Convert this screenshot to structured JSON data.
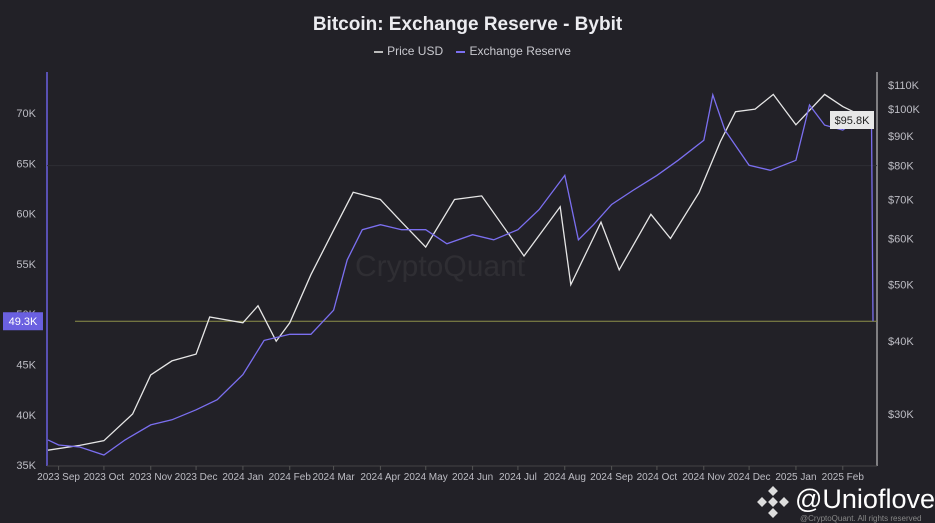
{
  "chart_data": {
    "type": "line",
    "title": "Bitcoin: Exchange Reserve - Bybit",
    "legend": {
      "placement": "top",
      "entries": [
        "Price USD",
        "Exchange Reserve"
      ]
    },
    "left_axis": {
      "ticks": [
        "35K",
        "40K",
        "45K",
        "50K",
        "55K",
        "60K",
        "65K",
        "70K"
      ],
      "tick_values": [
        35,
        40,
        45,
        50,
        55,
        60,
        65,
        70
      ],
      "range": [
        34,
        74
      ],
      "unit": "K BTC"
    },
    "right_axis": {
      "scale": "log",
      "ticks": [
        "$30K",
        "$40K",
        "$50K",
        "$60K",
        "$70K",
        "$80K",
        "$90K",
        "$100K",
        "$110K"
      ],
      "tick_values": [
        30,
        40,
        50,
        60,
        70,
        80,
        90,
        100,
        110
      ]
    },
    "x_ticks": [
      "2023 Sep",
      "2023 Oct",
      "2023 Nov",
      "2023 Dec",
      "2024 Jan",
      "2024 Feb",
      "2024 Mar",
      "2024 Apr",
      "2024 May",
      "2024 Jun",
      "2024 Jul",
      "2024 Aug",
      "2024 Sep",
      "2024 Oct",
      "2024 Nov",
      "2024 Dec",
      "2025 Jan",
      "2025 Feb"
    ],
    "x_tick_dates": [
      "2023-09-01",
      "2023-10-01",
      "2023-11-01",
      "2023-12-01",
      "2024-01-01",
      "2024-02-01",
      "2024-03-01",
      "2024-04-01",
      "2024-05-01",
      "2024-06-01",
      "2024-07-01",
      "2024-08-01",
      "2024-09-01",
      "2024-10-01",
      "2024-11-01",
      "2024-12-01",
      "2025-01-01",
      "2025-02-01"
    ],
    "current_labels": {
      "reserve": "49.3K",
      "price": "$95.8K"
    },
    "series": [
      {
        "name": "Exchange Reserve",
        "color": "#7b6ff0",
        "axis": "left",
        "points": [
          [
            "2023-08-25",
            37.5
          ],
          [
            "2023-09-01",
            37
          ],
          [
            "2023-09-15",
            36.8
          ],
          [
            "2023-10-01",
            36
          ],
          [
            "2023-10-15",
            37.5
          ],
          [
            "2023-11-01",
            39
          ],
          [
            "2023-11-15",
            39.5
          ],
          [
            "2023-12-01",
            40.5
          ],
          [
            "2023-12-15",
            41.5
          ],
          [
            "2024-01-01",
            44
          ],
          [
            "2024-01-15",
            47.4
          ],
          [
            "2024-02-01",
            48
          ],
          [
            "2024-02-15",
            48
          ],
          [
            "2024-03-01",
            50.4
          ],
          [
            "2024-03-10",
            55.4
          ],
          [
            "2024-03-20",
            58.4
          ],
          [
            "2024-04-01",
            58.9
          ],
          [
            "2024-04-15",
            58.4
          ],
          [
            "2024-05-01",
            58.4
          ],
          [
            "2024-05-15",
            57
          ],
          [
            "2024-06-01",
            57.9
          ],
          [
            "2024-06-15",
            57.4
          ],
          [
            "2024-07-01",
            58.4
          ],
          [
            "2024-07-15",
            60.4
          ],
          [
            "2024-08-01",
            63.8
          ],
          [
            "2024-08-10",
            57.4
          ],
          [
            "2024-08-20",
            58.9
          ],
          [
            "2024-09-01",
            60.9
          ],
          [
            "2024-09-15",
            62.3
          ],
          [
            "2024-10-01",
            63.8
          ],
          [
            "2024-10-15",
            65.3
          ],
          [
            "2024-11-01",
            67.3
          ],
          [
            "2024-11-07",
            71.8
          ],
          [
            "2024-11-15",
            68.3
          ],
          [
            "2024-12-01",
            64.8
          ],
          [
            "2024-12-15",
            64.3
          ],
          [
            "2025-01-01",
            65.3
          ],
          [
            "2025-01-10",
            70.8
          ],
          [
            "2025-01-20",
            68.8
          ],
          [
            "2025-02-01",
            68.3
          ],
          [
            "2025-02-15",
            69.8
          ],
          [
            "2025-02-20",
            69.3
          ],
          [
            "2025-02-21",
            49.3
          ]
        ]
      },
      {
        "name": "Price USD",
        "color": "#e6e6e6",
        "axis": "right",
        "points": [
          [
            "2023-08-25",
            26
          ],
          [
            "2023-09-15",
            26.5
          ],
          [
            "2023-10-01",
            27
          ],
          [
            "2023-10-20",
            30
          ],
          [
            "2023-11-01",
            35
          ],
          [
            "2023-11-15",
            37
          ],
          [
            "2023-12-01",
            38
          ],
          [
            "2023-12-10",
            44
          ],
          [
            "2024-01-01",
            43
          ],
          [
            "2024-01-11",
            46
          ],
          [
            "2024-01-23",
            40
          ],
          [
            "2024-02-01",
            43
          ],
          [
            "2024-02-15",
            52
          ],
          [
            "2024-03-01",
            62
          ],
          [
            "2024-03-14",
            72
          ],
          [
            "2024-04-01",
            70
          ],
          [
            "2024-04-15",
            64
          ],
          [
            "2024-05-01",
            58
          ],
          [
            "2024-05-20",
            70
          ],
          [
            "2024-06-07",
            71
          ],
          [
            "2024-06-25",
            61
          ],
          [
            "2024-07-05",
            56
          ],
          [
            "2024-07-29",
            68
          ],
          [
            "2024-08-05",
            50
          ],
          [
            "2024-08-25",
            64
          ],
          [
            "2024-09-06",
            53
          ],
          [
            "2024-09-27",
            66
          ],
          [
            "2024-10-10",
            60
          ],
          [
            "2024-10-29",
            72
          ],
          [
            "2024-11-12",
            88
          ],
          [
            "2024-11-22",
            99
          ],
          [
            "2024-12-05",
            100
          ],
          [
            "2024-12-17",
            106
          ],
          [
            "2025-01-01",
            94
          ],
          [
            "2025-01-20",
            106
          ],
          [
            "2025-02-01",
            101
          ],
          [
            "2025-02-15",
            97
          ],
          [
            "2025-02-21",
            95.8
          ]
        ]
      }
    ]
  },
  "watermark": "CryptoQuant",
  "credit": "@Unioflove",
  "rights": "@CryptoQuant. All rights reserved"
}
